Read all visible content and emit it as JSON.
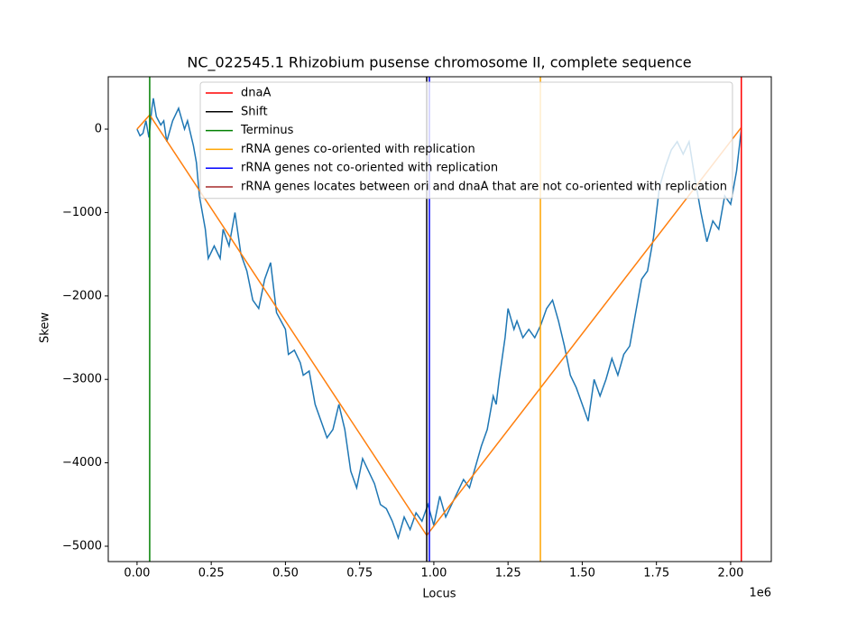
{
  "chart_data": {
    "type": "line",
    "title": "NC_022545.1 Rhizobium pusense chromosome II, complete sequence",
    "x_label": "Locus",
    "y_label": "Skew",
    "x_offset_label": "1e6",
    "xlim": [
      -97000,
      2137000
    ],
    "ylim": [
      -5184,
      628
    ],
    "xticks": [
      {
        "value": 0,
        "label": "0.00"
      },
      {
        "value": 250000,
        "label": "0.25"
      },
      {
        "value": 500000,
        "label": "0.50"
      },
      {
        "value": 750000,
        "label": "0.75"
      },
      {
        "value": 1000000,
        "label": "1.00"
      },
      {
        "value": 1250000,
        "label": "1.25"
      },
      {
        "value": 1500000,
        "label": "1.50"
      },
      {
        "value": 1750000,
        "label": "1.75"
      },
      {
        "value": 2000000,
        "label": "2.00"
      }
    ],
    "yticks": [
      0,
      {
        "value": -1000,
        "label": "−1000"
      },
      {
        "value": -2000,
        "label": "−2000"
      },
      {
        "value": -3000,
        "label": "−3000"
      },
      {
        "value": -4000,
        "label": "−4000"
      },
      {
        "value": -5000,
        "label": "−5000"
      }
    ],
    "grid": false,
    "series": [
      {
        "color": "#1f77b4",
        "x": [
          0,
          10000,
          20000,
          30000,
          40000,
          50000,
          55000,
          65000,
          80000,
          90000,
          100000,
          120000,
          140000,
          160000,
          170000,
          190000,
          200000,
          210000,
          230000,
          240000,
          260000,
          280000,
          290000,
          310000,
          330000,
          350000,
          370000,
          390000,
          410000,
          430000,
          450000,
          470000,
          500000,
          510000,
          530000,
          550000,
          560000,
          580000,
          600000,
          620000,
          640000,
          660000,
          680000,
          700000,
          720000,
          740000,
          760000,
          780000,
          800000,
          820000,
          840000,
          860000,
          880000,
          900000,
          920000,
          940000,
          960000,
          980000,
          1000000,
          1020000,
          1040000,
          1060000,
          1080000,
          1100000,
          1120000,
          1140000,
          1160000,
          1180000,
          1200000,
          1210000,
          1220000,
          1240000,
          1250000,
          1270000,
          1280000,
          1300000,
          1320000,
          1340000,
          1360000,
          1380000,
          1400000,
          1420000,
          1440000,
          1460000,
          1480000,
          1500000,
          1520000,
          1540000,
          1560000,
          1580000,
          1600000,
          1620000,
          1640000,
          1660000,
          1680000,
          1700000,
          1720000,
          1740000,
          1760000,
          1780000,
          1800000,
          1820000,
          1840000,
          1860000,
          1880000,
          1900000,
          1920000,
          1940000,
          1960000,
          1980000,
          2000000,
          2020000,
          2036000
        ],
        "values": [
          0,
          -80,
          -50,
          100,
          -100,
          250,
          370,
          150,
          50,
          100,
          -150,
          100,
          250,
          0,
          100,
          -200,
          -400,
          -800,
          -1200,
          -1550,
          -1400,
          -1550,
          -1200,
          -1400,
          -1000,
          -1500,
          -1700,
          -2050,
          -2150,
          -1800,
          -1600,
          -2200,
          -2400,
          -2700,
          -2650,
          -2800,
          -2950,
          -2900,
          -3300,
          -3500,
          -3700,
          -3600,
          -3300,
          -3600,
          -4100,
          -4300,
          -3950,
          -4100,
          -4250,
          -4500,
          -4550,
          -4700,
          -4900,
          -4650,
          -4800,
          -4600,
          -4700,
          -4500,
          -4750,
          -4400,
          -4650,
          -4500,
          -4350,
          -4200,
          -4300,
          -4050,
          -3800,
          -3600,
          -3200,
          -3300,
          -3000,
          -2500,
          -2150,
          -2400,
          -2300,
          -2500,
          -2400,
          -2500,
          -2350,
          -2150,
          -2050,
          -2300,
          -2600,
          -2950,
          -3100,
          -3300,
          -3500,
          -3000,
          -3200,
          -3000,
          -2750,
          -2950,
          -2700,
          -2600,
          -2200,
          -1800,
          -1700,
          -1300,
          -700,
          -450,
          -250,
          -150,
          -300,
          -150,
          -600,
          -1000,
          -1350,
          -1100,
          -1200,
          -800,
          -900,
          -500,
          0
        ]
      },
      {
        "color": "#ff7f0e",
        "x": [
          0,
          42600,
          976000,
          2036000
        ],
        "values": [
          0,
          170,
          -4870,
          20
        ]
      }
    ],
    "vlines": [
      {
        "name": "dnaA",
        "color": "#ff0000",
        "x": [
          2036000
        ]
      },
      {
        "name": "Shift",
        "color": "#000000",
        "x": [
          976000
        ]
      },
      {
        "name": "Terminus",
        "color": "#008000",
        "x": [
          42600
        ]
      },
      {
        "name": "rRNA genes co-oriented with replication",
        "color": "#ffa500",
        "x": [
          1359000
        ]
      },
      {
        "name": "rRNA genes not co-oriented with replication",
        "color": "#0000ff",
        "x": [
          985000
        ]
      },
      {
        "name": "rRNA genes locates between ori and dnaA that are not co-oriented with replication",
        "color": "#a52a2a",
        "x": []
      }
    ]
  }
}
